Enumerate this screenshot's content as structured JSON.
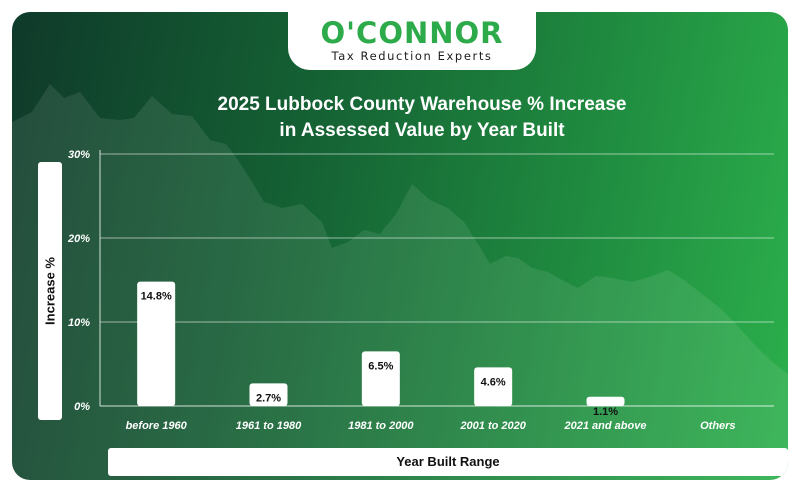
{
  "brand": {
    "name": "O'CONNOR",
    "tagline": "Tax Reduction Experts",
    "accent_color": "#2daa4a"
  },
  "chart_data": {
    "type": "bar",
    "title_line1": "2025 Lubbock County Warehouse % Increase",
    "title_line2": "in Assessed Value by Year Built",
    "xlabel": "Year Built Range",
    "ylabel": "Increase %",
    "categories": [
      "before 1960",
      "1961 to 1980",
      "1981 to 2000",
      "2001 to 2020",
      "2021 and above",
      "Others"
    ],
    "values": [
      14.8,
      2.7,
      6.5,
      4.6,
      1.1,
      null
    ],
    "data_labels": [
      "14.8%",
      "2.7%",
      "6.5%",
      "4.6%",
      "1.1%",
      ""
    ],
    "yticks": [
      0,
      10,
      20,
      30
    ],
    "ytick_labels": [
      "0%",
      "10%",
      "20%",
      "30%"
    ],
    "ylim": [
      0,
      30
    ],
    "grid": true,
    "bar_color": "#ffffff",
    "background_colors": [
      "#0f3a2a",
      "#2cb04c"
    ]
  }
}
